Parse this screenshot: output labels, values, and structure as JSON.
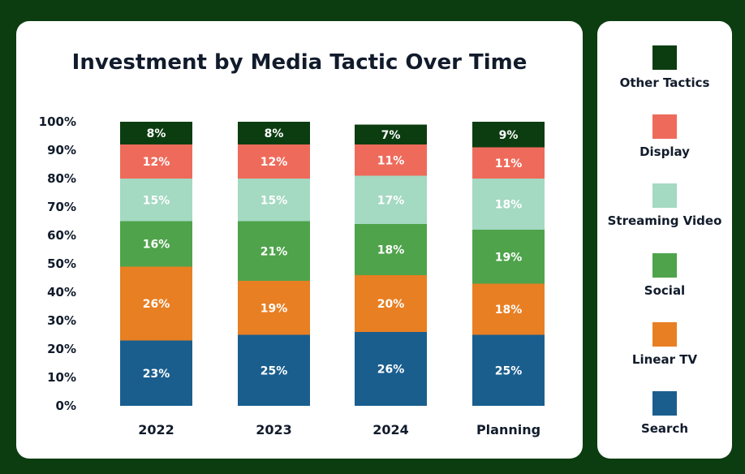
{
  "chart_data": {
    "type": "bar",
    "stacked": true,
    "title": "Investment by Media Tactic Over Time",
    "categories": [
      "2022",
      "2023",
      "2024",
      "Planning"
    ],
    "ylim": [
      0,
      100
    ],
    "yticks": [
      "0%",
      "10%",
      "20%",
      "30%",
      "40%",
      "50%",
      "60%",
      "70%",
      "80%",
      "90%",
      "100%"
    ],
    "grid": false,
    "legend_position": "right",
    "series": [
      {
        "name": "Search",
        "color": "#1a5e8e",
        "values": [
          23,
          25,
          26,
          25
        ],
        "labels": [
          "23%",
          "25%",
          "26%",
          "25%"
        ]
      },
      {
        "name": "Linear TV",
        "color": "#e87f23",
        "values": [
          26,
          19,
          20,
          18
        ],
        "labels": [
          "26%",
          "19%",
          "20%",
          "18%"
        ]
      },
      {
        "name": "Social",
        "color": "#4fa34b",
        "values": [
          16,
          21,
          18,
          19
        ],
        "labels": [
          "16%",
          "21%",
          "18%",
          "19%"
        ]
      },
      {
        "name": "Streaming Video",
        "color": "#a4d9c2",
        "values": [
          15,
          15,
          17,
          18
        ],
        "labels": [
          "15%",
          "15%",
          "17%",
          "18%"
        ]
      },
      {
        "name": "Display",
        "color": "#ee6b5b",
        "values": [
          12,
          12,
          11,
          11
        ],
        "labels": [
          "12%",
          "12%",
          "11%",
          "11%"
        ]
      },
      {
        "name": "Other Tactics",
        "color": "#0c3d11",
        "values": [
          8,
          8,
          7,
          9
        ],
        "labels": [
          "8%",
          "8%",
          "7%",
          "9%"
        ]
      }
    ]
  }
}
